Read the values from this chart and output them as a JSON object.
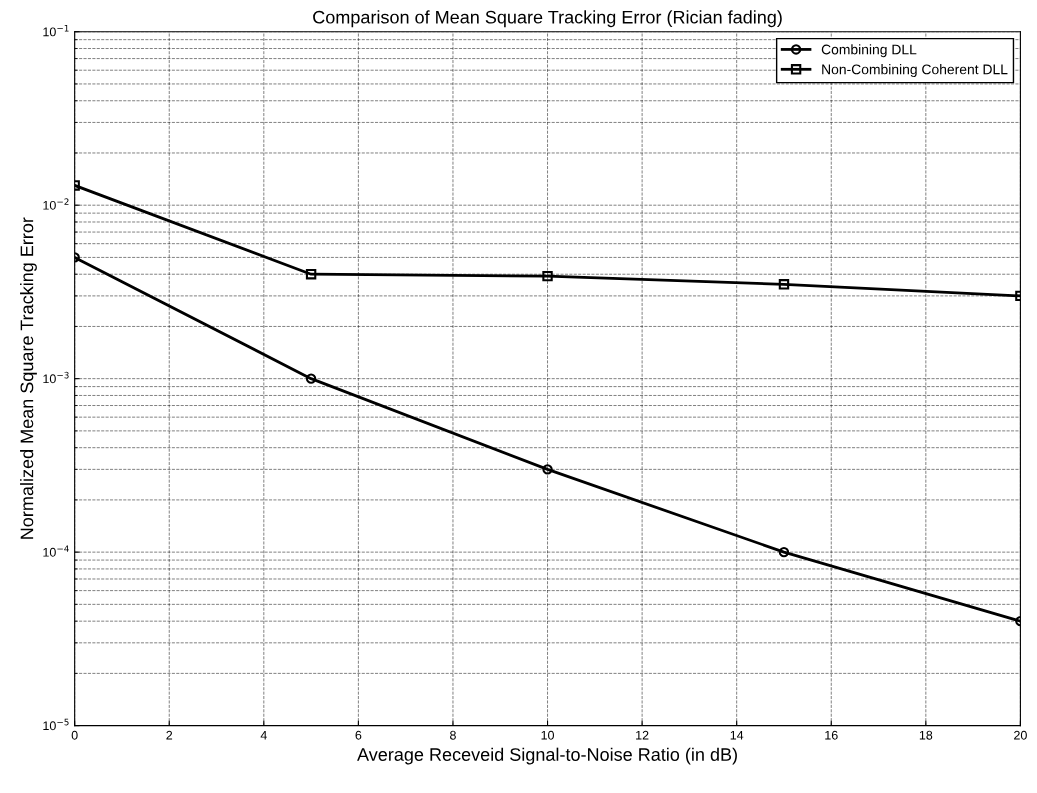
{
  "chart_data": {
    "type": "line",
    "title": "Comparison of Mean Square Tracking Error (Rician fading)",
    "xlabel": "Average Receveid Signal-to-Noise Ratio (in dB)",
    "ylabel": "Normalized Mean Square Tracking Error",
    "x": [
      0,
      5,
      10,
      15,
      20
    ],
    "series": [
      {
        "name": "Combining DLL",
        "color": "#000000",
        "marker": "circle",
        "values": [
          0.005,
          0.001,
          0.0003,
          0.0001,
          4e-05
        ]
      },
      {
        "name": "Non-Combining Coherent DLL",
        "color": "#000000",
        "marker": "square",
        "values": [
          0.013,
          0.004,
          0.0039,
          0.0035,
          0.003
        ]
      }
    ],
    "log": "y",
    "xlim": [
      0,
      20
    ],
    "xticks": [
      0,
      2,
      4,
      6,
      8,
      10,
      12,
      14,
      16,
      18,
      20
    ],
    "ylim": [
      1e-05,
      0.1
    ],
    "yticks": [
      {
        "value": 1e-05,
        "label": "10$^{−5}$"
      },
      {
        "value": 0.0001,
        "label": "10$^{−4}$"
      },
      {
        "value": 0.001,
        "label": "10$^{−3}$"
      },
      {
        "value": 0.01,
        "label": "10$^{−2}$"
      },
      {
        "value": 0.1,
        "label": "10$^{−1}$"
      }
    ],
    "grid": true,
    "legend": "top right",
    "line_style": "solid"
  }
}
